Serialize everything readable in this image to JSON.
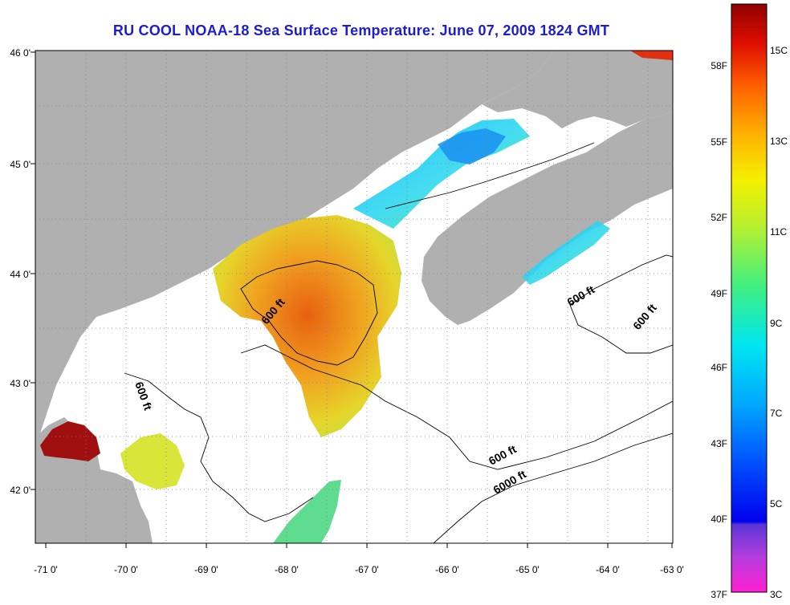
{
  "title": "RU COOL  NOAA-18  Sea Surface Temperature:  June 07, 2009 1824 GMT",
  "map": {
    "lon_ticks": [
      "-71 0'",
      "-70 0'",
      "-69 0'",
      "-68 0'",
      "-67 0'",
      "-66 0'",
      "-65 0'",
      "-64 0'",
      "-63 0'"
    ],
    "lat_ticks": [
      "46 0'",
      "45 0'",
      "44 0'",
      "43 0'",
      "42 0'"
    ],
    "contour_labels": [
      "600 ft",
      "600 ft",
      "600 ft",
      "600 ft",
      "600 ft",
      "6000 ft"
    ],
    "colors": {
      "land": "#b0b0b0",
      "ocean": "#ffffff",
      "grid": "#808080"
    }
  },
  "colorbar": {
    "fahrenheit_labels": [
      "58F",
      "55F",
      "52F",
      "49F",
      "46F",
      "43F",
      "40F",
      "37F"
    ],
    "celsius_labels": [
      "15C",
      "13C",
      "11C",
      "9C",
      "7C",
      "5C",
      "3C"
    ]
  }
}
